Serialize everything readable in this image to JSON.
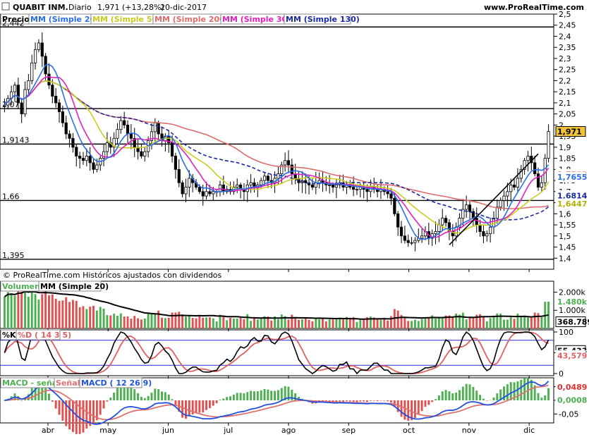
{
  "header": {
    "symbol": "QUABIT INM.",
    "period": "Diario",
    "last": "1,971 (+13,28%)",
    "date": "20-dic-2017",
    "site": "www.ProRealTime.com"
  },
  "legend": {
    "price": "Precio",
    "ma20": "MM (Simple 20)",
    "ma50": "MM (Simple 50)",
    "ma200": "MM (Simple 200)",
    "ma30": "MM (Simple 30)",
    "ma130": "MM (Simple 130)",
    "volume": "Volumen",
    "vol_ma": "MM (Simple 20)",
    "stoch_k": "%K",
    "stoch_d": "%D ( 14 3 5)",
    "macd_signal_diff": "MACD - señal",
    "macd_signal": "Señal",
    "macd": "MACD ( 12 26 9)"
  },
  "copyright": "© ProRealTime.com Históricos ajustados con dividendos",
  "colors": {
    "ma20": "#2a6ee6",
    "ma50": "#cccc20",
    "ma200": "#dd6b6b",
    "ma30": "#e020c0",
    "ma130": "#1a2aa0",
    "candle": "#000000",
    "volume": "#4caf50",
    "volume_down": "#e05050",
    "stoch_k": "#000000",
    "stoch_d": "#e06060",
    "macd": "#2050e0",
    "signal": "#e07070",
    "hist_pos": "#4caf50",
    "hist_neg": "#e05050",
    "tag_last": "#f2c43a"
  },
  "chart_data": [
    {
      "type": "candlestick",
      "panel": "price",
      "x_ticks": [
        "abr",
        "may",
        "jun",
        "jul",
        "ago",
        "sep",
        "oct",
        "nov",
        "dic"
      ],
      "y_ticks": [
        "1,4",
        "1,45",
        "1,5",
        "1,55",
        "1,6",
        "1,65",
        "1,7",
        "1,75",
        "1,8",
        "1,85",
        "1,9",
        "1,95",
        "2",
        "2,05",
        "2,1",
        "2,15",
        "2,2",
        "2,25",
        "2,3",
        "2,35",
        "2,4",
        "2,45",
        "2,5"
      ],
      "ylim": [
        1.35,
        2.5
      ],
      "horizontal_levels": [
        {
          "value": 2.442,
          "label": "2,442"
        },
        {
          "value": 2.074,
          "label": "2,07"
        },
        {
          "value": 1.9143,
          "label": "1,9143"
        },
        {
          "value": 1.66,
          "label": "1,66"
        },
        {
          "value": 1.395,
          "label": "1,395"
        }
      ],
      "tags": [
        {
          "series": "last",
          "value": 1.971,
          "label": "1,971"
        },
        {
          "series": "ma200",
          "value": 1.7783,
          "label": "1,7783"
        },
        {
          "series": "ma20",
          "value": 1.7655,
          "label": "1,7655"
        },
        {
          "series": "ma130",
          "value": 1.6814,
          "label": "1,6814"
        },
        {
          "series": "ma50",
          "value": 1.6447,
          "label": "1,6447"
        }
      ],
      "close_series": [
        2.09,
        2.12,
        2.15,
        2.18,
        2.1,
        2.05,
        2.16,
        2.2,
        2.28,
        2.34,
        2.37,
        2.31,
        2.23,
        2.18,
        2.13,
        2.1,
        2.06,
        2.01,
        1.96,
        1.94,
        1.9,
        1.86,
        1.85,
        1.84,
        1.86,
        1.83,
        1.8,
        1.82,
        1.85,
        1.88,
        1.92,
        1.9,
        1.94,
        1.98,
        2.02,
        2.0,
        1.96,
        1.94,
        1.9,
        1.88,
        1.86,
        1.88,
        1.93,
        1.97,
        2.01,
        1.96,
        1.93,
        1.95,
        1.92,
        1.86,
        1.8,
        1.74,
        1.69,
        1.72,
        1.76,
        1.74,
        1.72,
        1.7,
        1.68,
        1.7,
        1.69,
        1.7,
        1.7,
        1.73,
        1.7,
        1.71,
        1.7,
        1.72,
        1.73,
        1.71,
        1.7,
        1.73,
        1.74,
        1.72,
        1.73,
        1.75,
        1.77,
        1.75,
        1.74,
        1.76,
        1.78,
        1.82,
        1.84,
        1.82,
        1.78,
        1.76,
        1.74,
        1.75,
        1.74,
        1.73,
        1.72,
        1.74,
        1.75,
        1.74,
        1.73,
        1.73,
        1.72,
        1.73,
        1.74,
        1.72,
        1.73,
        1.72,
        1.71,
        1.71,
        1.72,
        1.71,
        1.7,
        1.72,
        1.71,
        1.7,
        1.71,
        1.7,
        1.69,
        1.67,
        1.6,
        1.54,
        1.5,
        1.48,
        1.47,
        1.47,
        1.48,
        1.49,
        1.5,
        1.52,
        1.49,
        1.51,
        1.52,
        1.55,
        1.58,
        1.56,
        1.52,
        1.5,
        1.54,
        1.58,
        1.62,
        1.64,
        1.61,
        1.58,
        1.55,
        1.52,
        1.5,
        1.51,
        1.54,
        1.58,
        1.63,
        1.66,
        1.68,
        1.7,
        1.73,
        1.72,
        1.76,
        1.8,
        1.84,
        1.86,
        1.83,
        1.78,
        1.72,
        1.74,
        1.85,
        1.971
      ]
    },
    {
      "type": "bar",
      "panel": "volume",
      "y_ticks": [
        "2.000k",
        "1.000k"
      ],
      "tags": [
        {
          "value": 1480,
          "label": "1.480k"
        },
        {
          "value": 368.789,
          "label": "368.789"
        }
      ]
    },
    {
      "type": "line",
      "panel": "stochastic",
      "y_ticks": [
        "100",
        "50",
        "0"
      ],
      "ylim": [
        0,
        100
      ],
      "tags": [
        {
          "series": "k",
          "value": 55.433,
          "label": "55,433"
        },
        {
          "series": "d",
          "value": 43.579,
          "label": "43,579"
        }
      ]
    },
    {
      "type": "line",
      "panel": "macd",
      "y_ticks": [
        "0,05",
        "0",
        "-0,05"
      ],
      "tags": [
        {
          "series": "macd",
          "value": 0.0489,
          "label": "0,0489"
        },
        {
          "series": "diff",
          "value": 0.0008,
          "label": "0,0008"
        }
      ]
    }
  ]
}
